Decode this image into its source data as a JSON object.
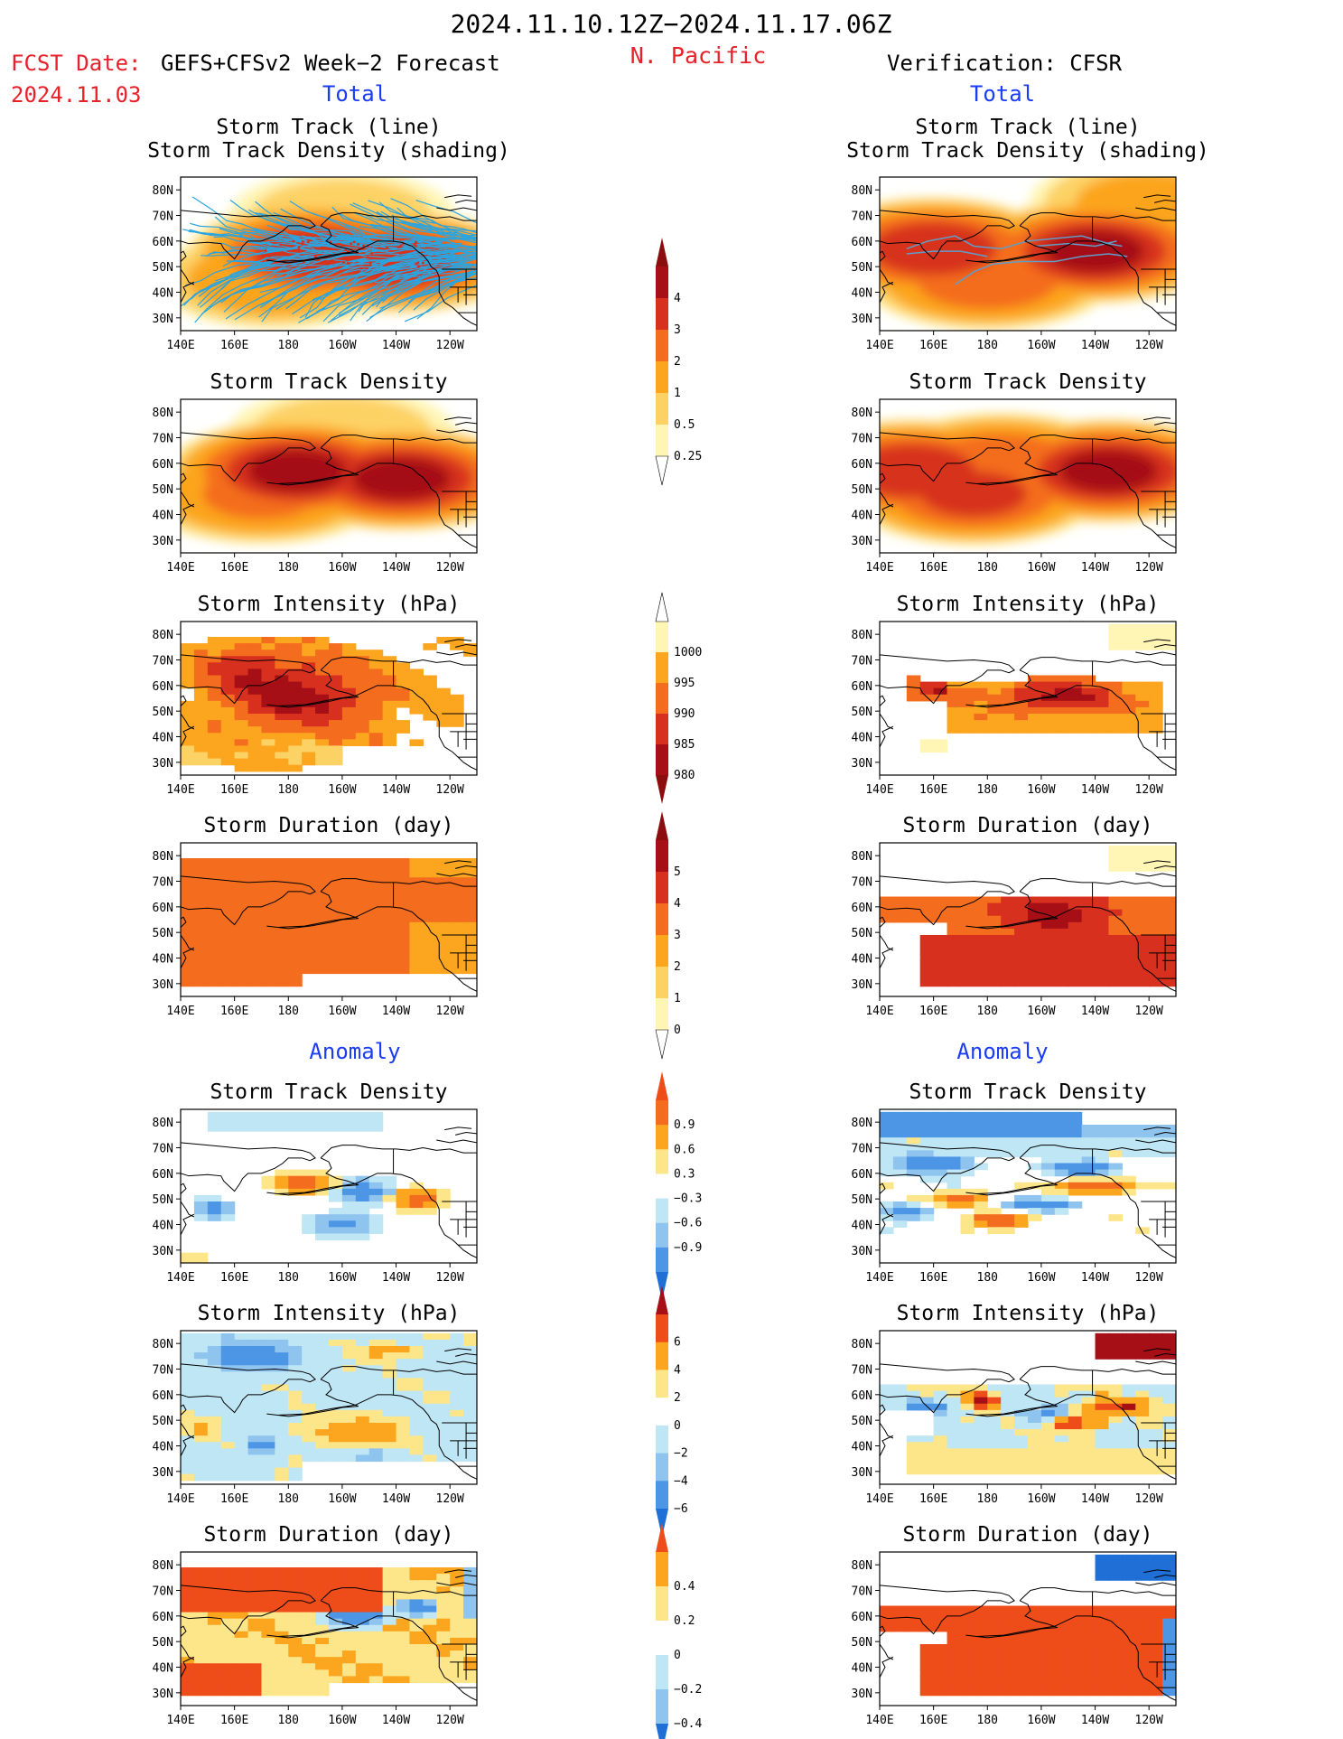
{
  "header": {
    "period": "2024.11.10.12Z−2024.11.17.06Z",
    "region": "N. Pacific",
    "fcst_label": "FCST Date:",
    "fcst_model": "GEFS+CFSv2 Week−2 Forecast",
    "fcst_date": "2024.11.03",
    "verification": "Verification: CFSR",
    "total_left": "Total",
    "total_right": "Total",
    "anomaly_left": "Anomaly",
    "anomaly_right": "Anomaly"
  },
  "axes": {
    "x_ticks": [
      "140E",
      "160E",
      "180",
      "160W",
      "140W",
      "120W"
    ],
    "y_ticks": [
      "80N",
      "70N",
      "60N",
      "50N",
      "40N",
      "30N"
    ],
    "lon_range": [
      140,
      250
    ],
    "lat_range": [
      25,
      85
    ]
  },
  "panels": {
    "left": [
      {
        "title": "Storm Track (line)",
        "title2": "Storm Track Density (shading)"
      },
      {
        "title": "Storm Track Density"
      },
      {
        "title": "Storm Intensity (hPa)"
      },
      {
        "title": "Storm Duration (day)"
      },
      {
        "title": "Storm Track Density"
      },
      {
        "title": "Storm Intensity (hPa)"
      },
      {
        "title": "Storm Duration (day)"
      }
    ],
    "right": [
      {
        "title": "Storm Track (line)",
        "title2": "Storm Track Density (shading)"
      },
      {
        "title": "Storm Track Density"
      },
      {
        "title": "Storm Intensity (hPa)"
      },
      {
        "title": "Storm Duration (day)"
      },
      {
        "title": "Storm Track Density"
      },
      {
        "title": "Storm Intensity (hPa)"
      },
      {
        "title": "Storm Duration (day)"
      }
    ]
  },
  "colorbars": [
    {
      "id": "density",
      "labels": [
        "4",
        "3",
        "2",
        "1",
        "0.5",
        "0.25"
      ],
      "colors": [
        "#a50f15",
        "#d7301f",
        "#f46d1e",
        "#fca51f",
        "#fdd265",
        "#fff5b5"
      ],
      "triangle_top": "#8c0d0d",
      "triangle_bottom": "#ffffff"
    },
    {
      "id": "intensity",
      "labels": [
        "1000",
        "995",
        "990",
        "985",
        "980"
      ],
      "colors": [
        "#fff5b5",
        "#fca51f",
        "#f46d1e",
        "#d7301f",
        "#a50f15"
      ],
      "triangle_top": "#ffffff",
      "triangle_bottom": "#8c0d0d"
    },
    {
      "id": "duration",
      "labels": [
        "5",
        "4",
        "3",
        "2",
        "1",
        "0"
      ],
      "colors": [
        "#a50f15",
        "#d7301f",
        "#f46d1e",
        "#fca51f",
        "#fdd265",
        "#fff5b5"
      ],
      "triangle_top": "#8c0d0d",
      "triangle_bottom": "#ffffff"
    },
    {
      "id": "anom_density",
      "labels": [
        "0.9",
        "0.6",
        "0.3",
        "−0.3",
        "−0.6",
        "−0.9"
      ],
      "colors": [
        "#f46d1e",
        "#fca51f",
        "#fde68a",
        "#ffffff",
        "#bfe6f5",
        "#8fc4ef",
        "#4d96e6"
      ],
      "triangle_top": "#ee4d1a",
      "triangle_bottom": "#1f6fd6"
    },
    {
      "id": "anom_intensity",
      "labels": [
        "6",
        "4",
        "2",
        "0",
        "−2",
        "−4",
        "−6"
      ],
      "colors": [
        "#ee4d1a",
        "#fca51f",
        "#fde68a",
        "#ffffff",
        "#bfe6f5",
        "#8fc4ef",
        "#4d96e6"
      ],
      "triangle_top": "#a50f15",
      "triangle_bottom": "#1f6fd6"
    },
    {
      "id": "anom_duration",
      "labels": [
        "0.4",
        "0.2",
        "0",
        "−0.2",
        "−0.4"
      ],
      "colors": [
        "#fca51f",
        "#fde68a",
        "#ffffff",
        "#bfe6f5",
        "#8fc4ef"
      ],
      "triangle_top": "#ee4d1a",
      "triangle_bottom": "#1f6fd6"
    }
  ],
  "colors": {
    "title_black": "#000000",
    "fcst_red": "#e8202a",
    "total_blue": "#1a3cf5",
    "track_line": "#2aa5e0",
    "track_line_right": "#5f9ec9",
    "coast": "#000000"
  },
  "chart_data": [
    {
      "type": "heatmap",
      "panel": "left-1",
      "title": "Storm Track (line) / Storm Track Density (shading)",
      "values_desc": "density field",
      "blobs": [
        {
          "lon": 190,
          "lat": 55,
          "value": 3.5
        },
        {
          "lon": 220,
          "lat": 52,
          "value": 3.5
        },
        {
          "lon": 175,
          "lat": 45,
          "value": 1.5
        },
        {
          "lon": 200,
          "lat": 70,
          "value": 0.5
        }
      ]
    },
    {
      "type": "heatmap",
      "panel": "right-1",
      "title": "Storm Track (line) / Storm Track Density (shading)",
      "blobs": [
        {
          "lon": 160,
          "lat": 57,
          "value": 3.5
        },
        {
          "lon": 220,
          "lat": 56,
          "value": 4.0
        },
        {
          "lon": 180,
          "lat": 45,
          "value": 2.5
        },
        {
          "lon": 240,
          "lat": 75,
          "value": 1.0
        }
      ]
    },
    {
      "type": "heatmap",
      "panel": "left-2",
      "title": "Storm Track Density",
      "blobs": [
        {
          "lon": 183,
          "lat": 57,
          "value": 4.0
        },
        {
          "lon": 222,
          "lat": 54,
          "value": 4.0
        },
        {
          "lon": 170,
          "lat": 48,
          "value": 2.0
        },
        {
          "lon": 200,
          "lat": 72,
          "value": 0.5
        }
      ]
    },
    {
      "type": "heatmap",
      "panel": "right-2",
      "title": "Storm Track Density",
      "blobs": [
        {
          "lon": 152,
          "lat": 57,
          "value": 3.5
        },
        {
          "lon": 225,
          "lat": 57,
          "value": 4.0
        },
        {
          "lon": 175,
          "lat": 48,
          "value": 3.0
        },
        {
          "lon": 185,
          "lat": 60,
          "value": 2.5
        }
      ]
    },
    {
      "type": "heatmap",
      "panel": "left-3",
      "title": "Storm Intensity (hPa)",
      "ranges": {
        "min": 980,
        "max": 1000
      }
    },
    {
      "type": "heatmap",
      "panel": "right-3",
      "title": "Storm Intensity (hPa)",
      "ranges": {
        "min": 980,
        "max": 1000
      }
    },
    {
      "type": "heatmap",
      "panel": "left-4",
      "title": "Storm Duration (day)",
      "ranges": {
        "min": 0,
        "max": 5
      }
    },
    {
      "type": "heatmap",
      "panel": "right-4",
      "title": "Storm Duration (day)",
      "ranges": {
        "min": 0,
        "max": 5
      }
    },
    {
      "type": "heatmap",
      "panel": "left-5",
      "title": "Storm Track Density",
      "ranges": {
        "min": -0.9,
        "max": 0.9
      }
    },
    {
      "type": "heatmap",
      "panel": "right-5",
      "title": "Storm Track Density",
      "ranges": {
        "min": -0.9,
        "max": 0.9
      }
    },
    {
      "type": "heatmap",
      "panel": "left-6",
      "title": "Storm Intensity (hPa)",
      "ranges": {
        "min": -6,
        "max": 6
      }
    },
    {
      "type": "heatmap",
      "panel": "right-6",
      "title": "Storm Intensity (hPa)",
      "ranges": {
        "min": -6,
        "max": 6
      }
    },
    {
      "type": "heatmap",
      "panel": "left-7",
      "title": "Storm Duration (day)",
      "ranges": {
        "min": -0.4,
        "max": 0.4
      }
    },
    {
      "type": "heatmap",
      "panel": "right-7",
      "title": "Storm Duration (day)",
      "ranges": {
        "min": -0.4,
        "max": 0.4
      }
    }
  ]
}
